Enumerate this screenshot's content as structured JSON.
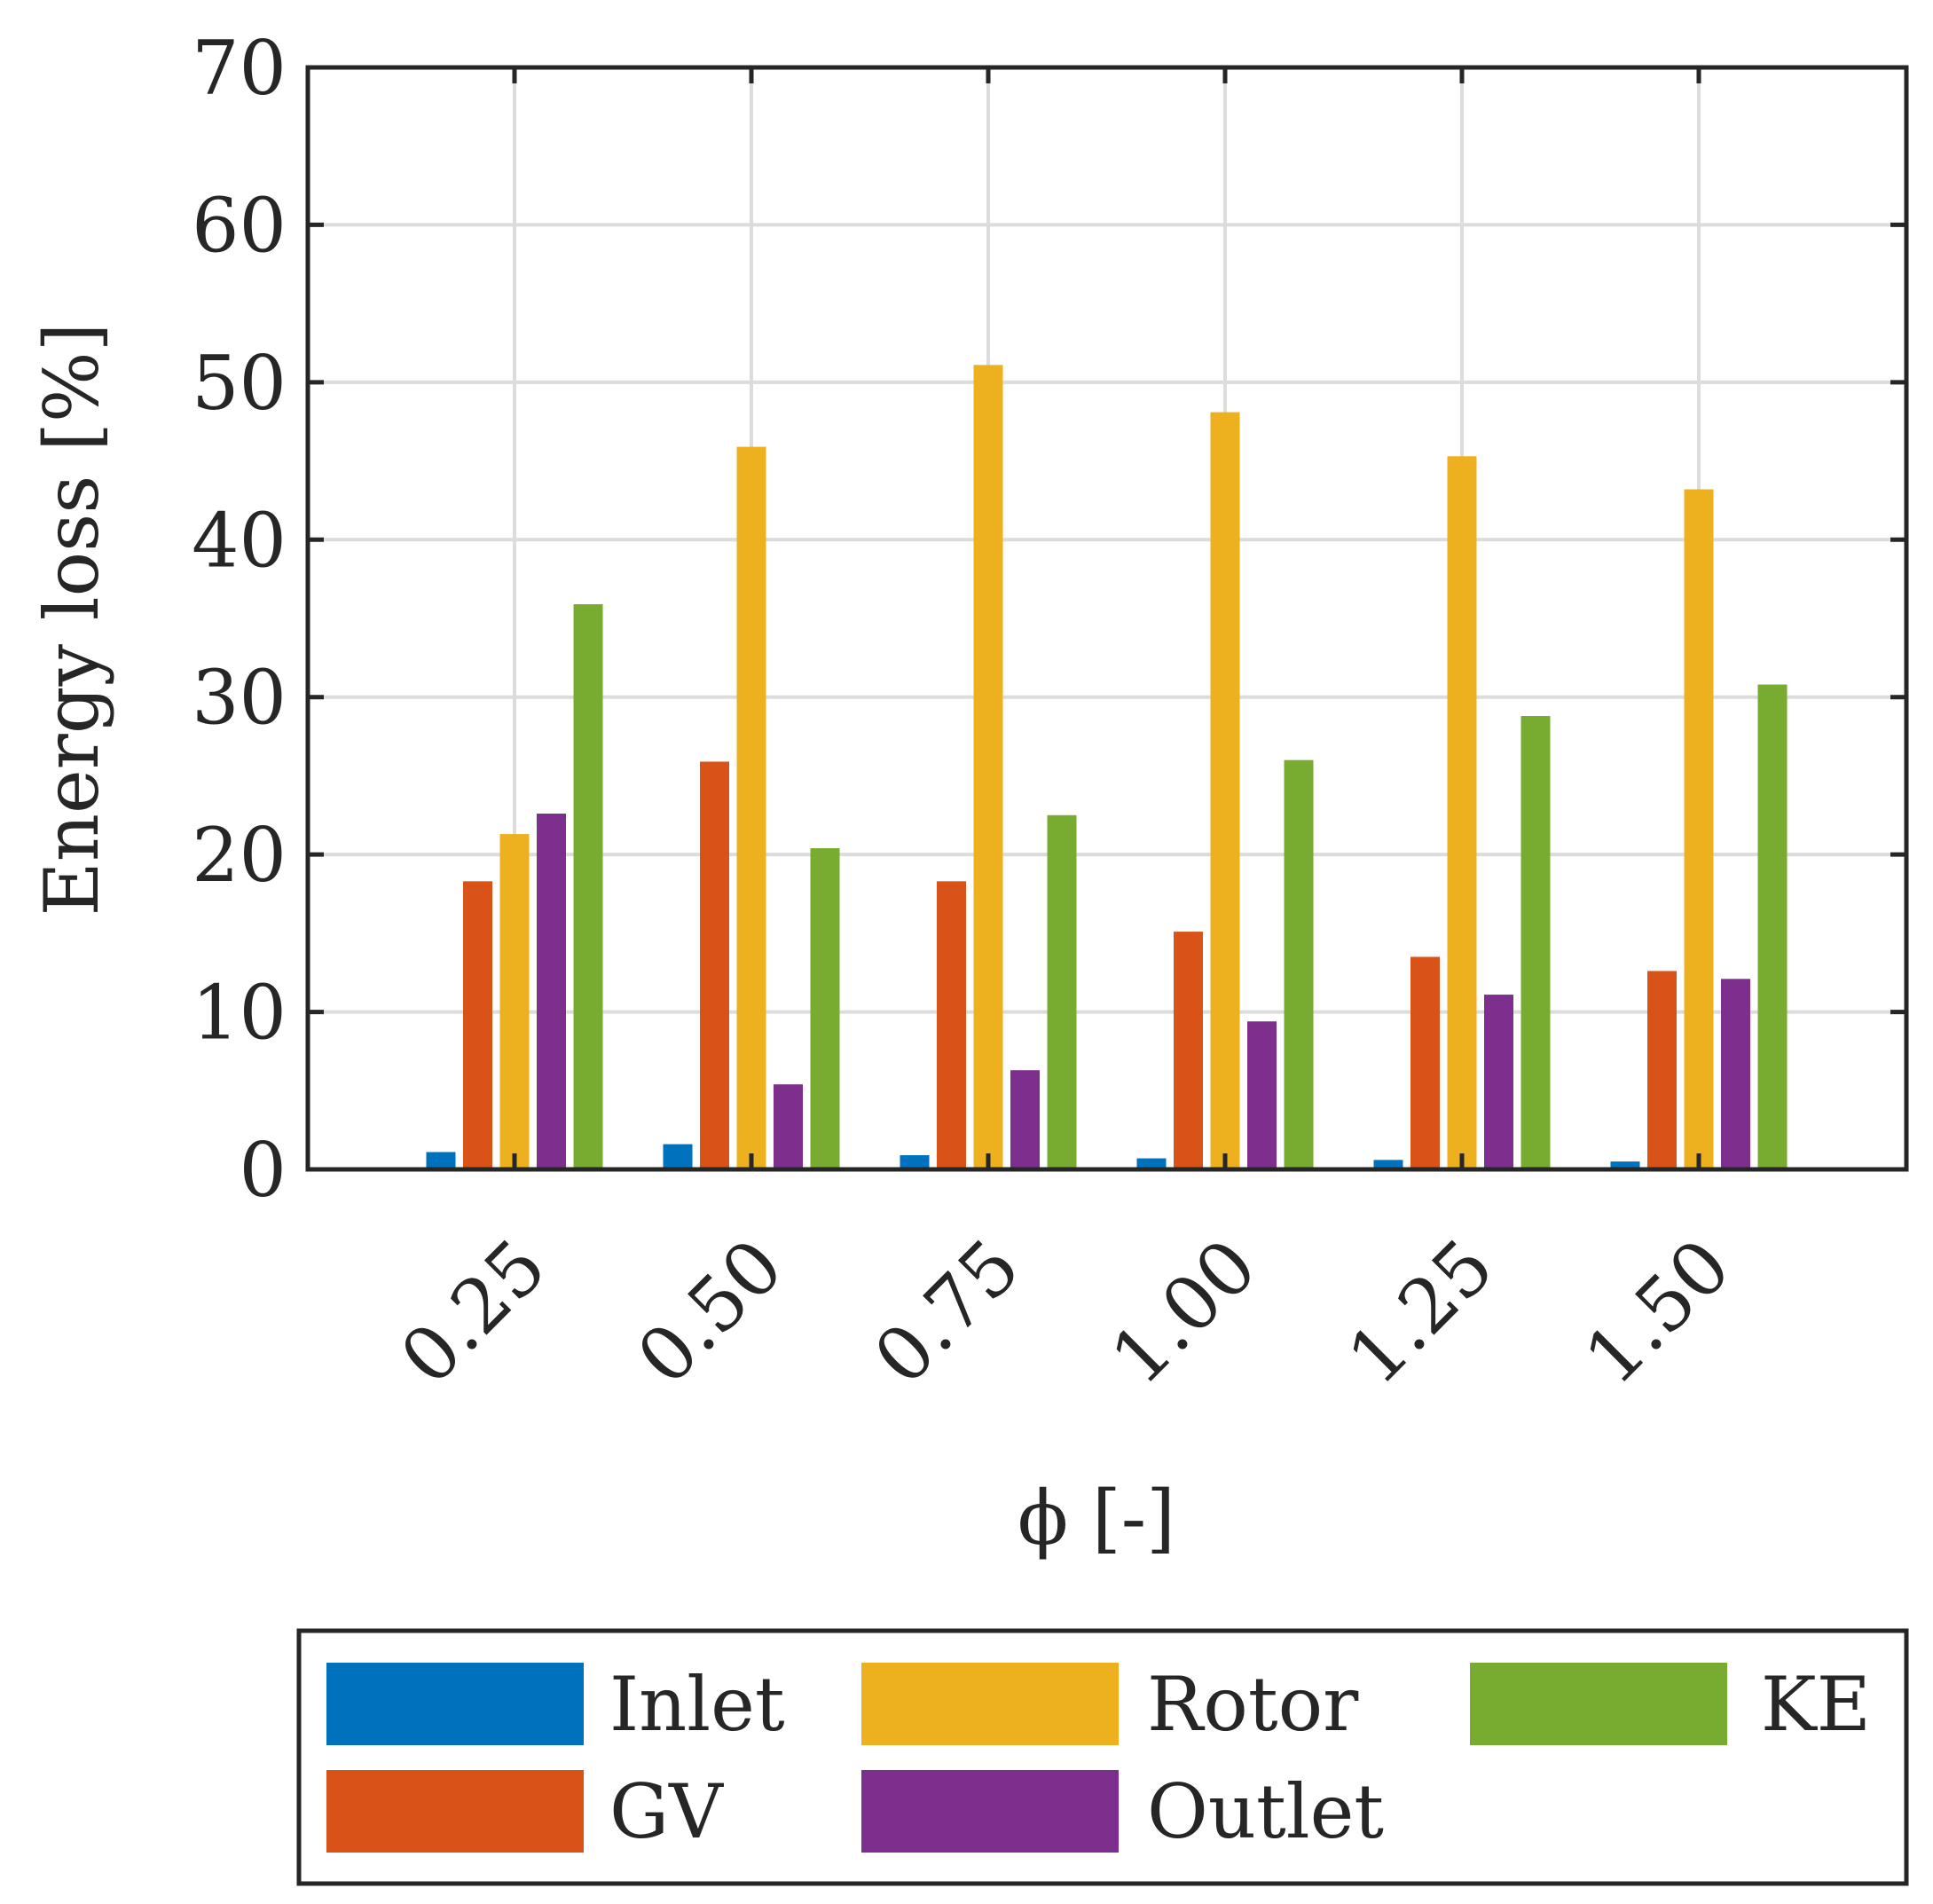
{
  "chart_data": {
    "type": "bar",
    "title": "",
    "xlabel": "ϕ [-]",
    "ylabel": "Energy loss [%]",
    "ylim": [
      0,
      70
    ],
    "yticks": [
      "0",
      "10",
      "20",
      "30",
      "40",
      "50",
      "60",
      "70"
    ],
    "grid": true,
    "legend_position": "bottom, outside",
    "categories": [
      "0.25",
      "0.50",
      "0.75",
      "1.00",
      "1.25",
      "1.50"
    ],
    "series": [
      {
        "name": "Inlet",
        "color": "#0072BD",
        "values": [
          1.1,
          1.6,
          0.9,
          0.7,
          0.6,
          0.5
        ]
      },
      {
        "name": "GV",
        "color": "#D95319",
        "values": [
          18.3,
          25.9,
          18.3,
          15.1,
          13.5,
          12.6
        ]
      },
      {
        "name": "Rotor",
        "color": "#EDB120",
        "values": [
          21.3,
          45.9,
          51.1,
          48.1,
          45.3,
          43.2
        ]
      },
      {
        "name": "Outlet",
        "color": "#7E2F8E",
        "values": [
          22.6,
          5.4,
          6.3,
          9.4,
          11.1,
          12.1
        ]
      },
      {
        "name": "KE",
        "color": "#77AC30",
        "values": [
          35.9,
          20.4,
          22.5,
          26.0,
          28.8,
          30.8
        ]
      }
    ]
  }
}
